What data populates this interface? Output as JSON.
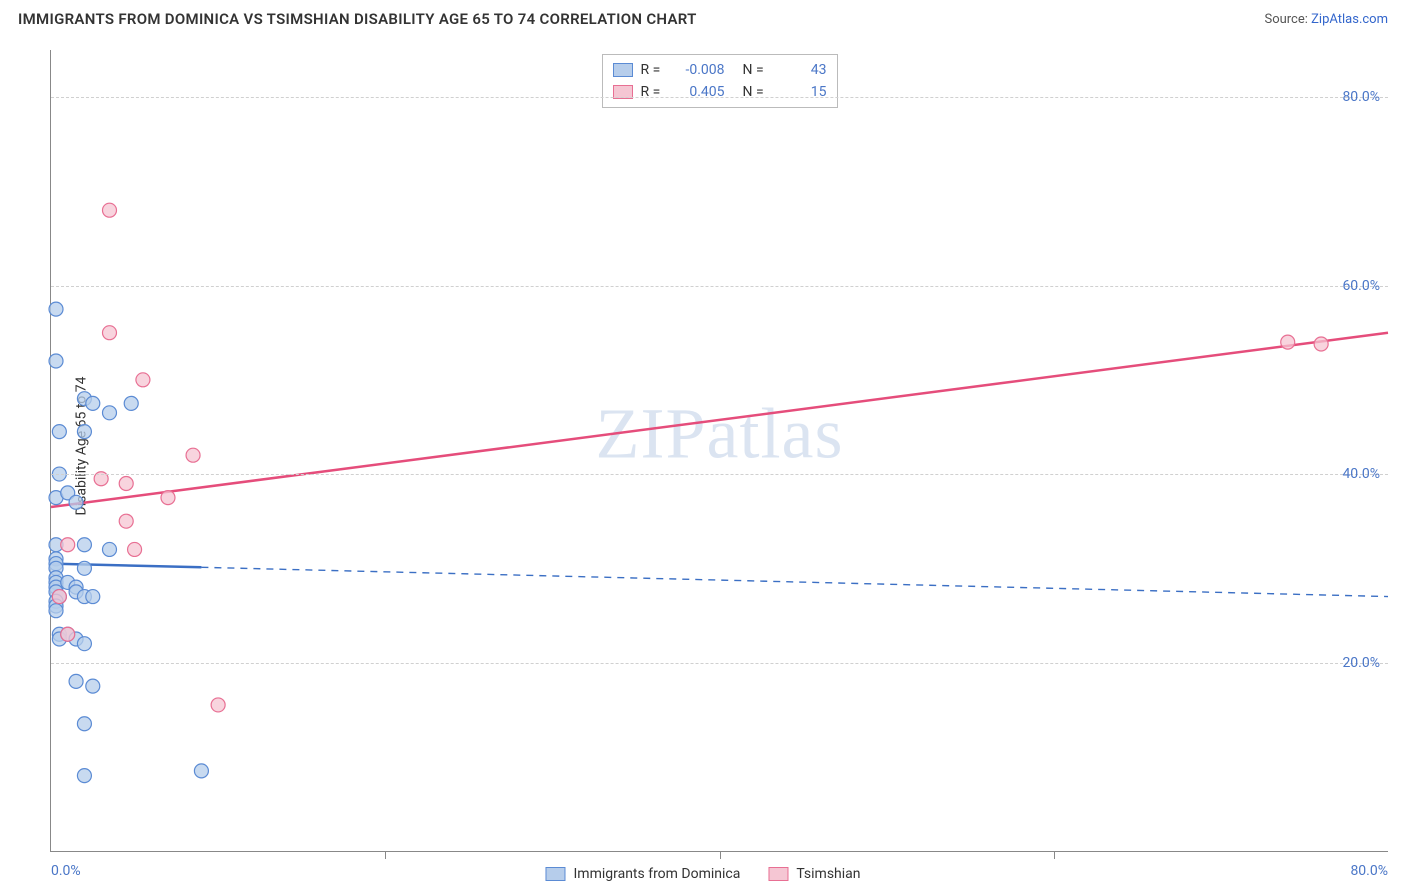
{
  "header": {
    "title": "IMMIGRANTS FROM DOMINICA VS TSIMSHIAN DISABILITY AGE 65 TO 74 CORRELATION CHART",
    "source_prefix": "Source: ",
    "source_link": "ZipAtlas.com"
  },
  "chart": {
    "type": "scatter-with-regression",
    "ylabel": "Disability Age 65 to 74",
    "xlim": [
      0,
      80
    ],
    "ylim": [
      0,
      85
    ],
    "x_ticks": [
      0,
      20,
      40,
      60,
      80
    ],
    "x_tick_labels": [
      "0.0%",
      "",
      "",
      "",
      "80.0%"
    ],
    "y_gridlines": [
      20,
      40,
      60,
      80
    ],
    "y_tick_labels": [
      "20.0%",
      "40.0%",
      "60.0%",
      "80.0%"
    ],
    "grid_color": "#d0d0d0",
    "axis_color": "#888888",
    "background_color": "#ffffff",
    "watermark": "ZIPatlas",
    "marker_radius": 7,
    "marker_stroke_width": 1.2,
    "line_width": 2.5,
    "series": [
      {
        "name": "Immigrants from Dominica",
        "fill": "#b6cdeb",
        "stroke": "#5b8bd4",
        "line_color": "#3b6fc4",
        "R": "-0.008",
        "N": "43",
        "points": [
          [
            0.3,
            57.5
          ],
          [
            0.3,
            52.0
          ],
          [
            0.5,
            44.5
          ],
          [
            0.5,
            40.0
          ],
          [
            0.3,
            37.5
          ],
          [
            0.3,
            32.5
          ],
          [
            0.3,
            31.0
          ],
          [
            0.3,
            30.5
          ],
          [
            0.3,
            30.0
          ],
          [
            0.3,
            29.0
          ],
          [
            0.3,
            28.5
          ],
          [
            0.3,
            28.0
          ],
          [
            0.3,
            27.5
          ],
          [
            0.5,
            27.0
          ],
          [
            0.5,
            27.0
          ],
          [
            0.3,
            26.5
          ],
          [
            0.3,
            26.0
          ],
          [
            0.3,
            25.5
          ],
          [
            0.5,
            23.0
          ],
          [
            0.5,
            22.5
          ],
          [
            2.0,
            48.0
          ],
          [
            2.5,
            47.5
          ],
          [
            4.8,
            47.5
          ],
          [
            2.0,
            44.5
          ],
          [
            3.5,
            46.5
          ],
          [
            1.0,
            38.0
          ],
          [
            1.5,
            37.0
          ],
          [
            2.0,
            32.5
          ],
          [
            2.0,
            30.0
          ],
          [
            3.5,
            32.0
          ],
          [
            1.0,
            28.5
          ],
          [
            1.5,
            28.0
          ],
          [
            1.5,
            27.5
          ],
          [
            2.0,
            27.0
          ],
          [
            2.5,
            27.0
          ],
          [
            1.0,
            23.0
          ],
          [
            1.5,
            22.5
          ],
          [
            2.0,
            22.0
          ],
          [
            1.5,
            18.0
          ],
          [
            2.5,
            17.5
          ],
          [
            2.0,
            13.5
          ],
          [
            2.0,
            8.0
          ],
          [
            9.0,
            8.5
          ]
        ],
        "regression": {
          "x1": 0,
          "y1": 30.5,
          "x2": 80,
          "y2": 27.0,
          "dash_split_x": 9.0
        }
      },
      {
        "name": "Tsimshian",
        "fill": "#f5c6d3",
        "stroke": "#e86f93",
        "line_color": "#e54d7b",
        "R": "0.405",
        "N": "15",
        "points": [
          [
            3.5,
            68.0
          ],
          [
            3.5,
            55.0
          ],
          [
            5.5,
            50.0
          ],
          [
            8.5,
            42.0
          ],
          [
            3.0,
            39.5
          ],
          [
            4.5,
            39.0
          ],
          [
            7.0,
            37.5
          ],
          [
            4.5,
            35.0
          ],
          [
            1.0,
            32.5
          ],
          [
            5.0,
            32.0
          ],
          [
            0.5,
            27.0
          ],
          [
            1.0,
            23.0
          ],
          [
            10.0,
            15.5
          ],
          [
            74.0,
            54.0
          ],
          [
            76.0,
            53.8
          ]
        ],
        "regression": {
          "x1": 0,
          "y1": 36.5,
          "x2": 80,
          "y2": 55.0,
          "dash_split_x": 80
        }
      }
    ],
    "legend_top": {
      "labels": {
        "r": "R =",
        "n": "N ="
      }
    },
    "legend_bottom": {
      "items": [
        "Immigrants from Dominica",
        "Tsimshian"
      ]
    }
  }
}
